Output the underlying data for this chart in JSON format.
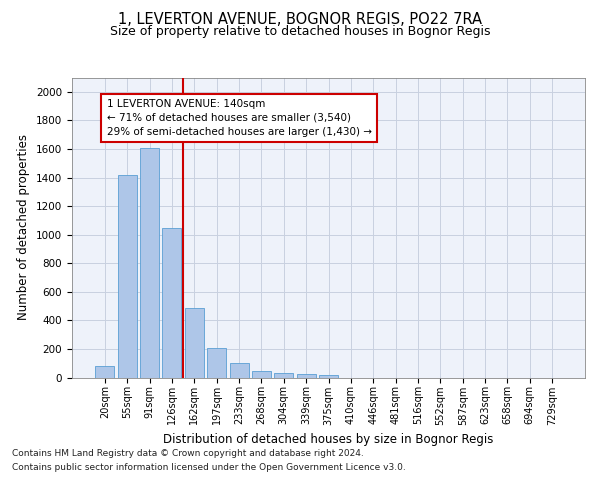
{
  "title_line1": "1, LEVERTON AVENUE, BOGNOR REGIS, PO22 7RA",
  "title_line2": "Size of property relative to detached houses in Bognor Regis",
  "xlabel": "Distribution of detached houses by size in Bognor Regis",
  "ylabel": "Number of detached properties",
  "categories": [
    "20sqm",
    "55sqm",
    "91sqm",
    "126sqm",
    "162sqm",
    "197sqm",
    "233sqm",
    "268sqm",
    "304sqm",
    "339sqm",
    "375sqm",
    "410sqm",
    "446sqm",
    "481sqm",
    "516sqm",
    "552sqm",
    "587sqm",
    "623sqm",
    "658sqm",
    "694sqm",
    "729sqm"
  ],
  "values": [
    80,
    1415,
    1610,
    1050,
    490,
    205,
    105,
    48,
    35,
    22,
    15,
    0,
    0,
    0,
    0,
    0,
    0,
    0,
    0,
    0,
    0
  ],
  "bar_color": "#aec6e8",
  "bar_edge_color": "#5a9fd4",
  "vline_x": 3.5,
  "vline_color": "#cc0000",
  "annotation_line1": "1 LEVERTON AVENUE: 140sqm",
  "annotation_line2": "← 71% of detached houses are smaller (3,540)",
  "annotation_line3": "29% of semi-detached houses are larger (1,430) →",
  "annotation_box_color": "#cc0000",
  "ylim": [
    0,
    2100
  ],
  "yticks": [
    0,
    200,
    400,
    600,
    800,
    1000,
    1200,
    1400,
    1600,
    1800,
    2000
  ],
  "grid_color": "#c8d0e0",
  "bg_color": "#eef2fa",
  "footer_line1": "Contains HM Land Registry data © Crown copyright and database right 2024.",
  "footer_line2": "Contains public sector information licensed under the Open Government Licence v3.0.",
  "title_fontsize": 10.5,
  "subtitle_fontsize": 9,
  "axis_label_fontsize": 8.5,
  "tick_fontsize": 7,
  "annotation_fontsize": 7.5,
  "footer_fontsize": 6.5
}
